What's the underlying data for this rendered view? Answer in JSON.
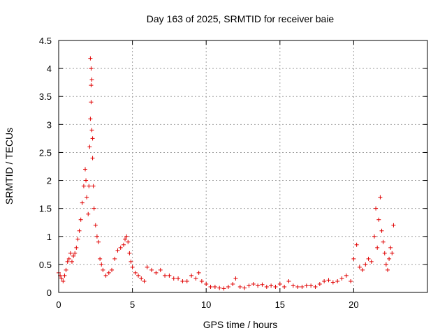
{
  "chart_data": {
    "type": "scatter",
    "title": "Day 163 of 2025, SRMTID for receiver baie",
    "xlabel": "GPS time / hours",
    "ylabel": "SRMTID / TECUs",
    "xlim": [
      0,
      25
    ],
    "ylim": [
      0,
      4.5
    ],
    "xticks": [
      0,
      5,
      10,
      15,
      20
    ],
    "xtick_labels": [
      "0",
      "5",
      "10",
      "15",
      "20"
    ],
    "yticks": [
      0,
      0.5,
      1,
      1.5,
      2,
      2.5,
      3,
      3.5,
      4,
      4.5
    ],
    "ytick_labels": [
      "0",
      "0.5",
      "1",
      "1.5",
      "2",
      "2.5",
      "3",
      "3.5",
      "4",
      "4.5"
    ],
    "grid": true,
    "marker": "+",
    "color": "#e00000",
    "series": [
      {
        "name": "SRMTID",
        "x": [
          0.0,
          0.1,
          0.2,
          0.3,
          0.4,
          0.5,
          0.6,
          0.7,
          0.8,
          0.9,
          1.0,
          1.1,
          1.2,
          1.3,
          1.4,
          1.5,
          1.6,
          1.7,
          1.8,
          1.85,
          1.9,
          2.0,
          2.05,
          2.1,
          2.15,
          2.15,
          2.2,
          2.2,
          2.2,
          2.25,
          2.25,
          2.3,
          2.3,
          2.35,
          2.4,
          2.5,
          2.6,
          2.7,
          2.8,
          2.9,
          3.0,
          3.2,
          3.4,
          3.6,
          3.8,
          4.0,
          4.2,
          4.4,
          4.5,
          4.6,
          4.7,
          4.8,
          4.9,
          5.0,
          5.2,
          5.4,
          5.6,
          5.8,
          6.0,
          6.3,
          6.6,
          6.9,
          7.2,
          7.5,
          7.8,
          8.1,
          8.4,
          8.7,
          9.0,
          9.3,
          9.5,
          9.7,
          10.0,
          10.3,
          10.6,
          10.9,
          11.2,
          11.5,
          11.8,
          12.0,
          12.3,
          12.6,
          12.9,
          13.2,
          13.5,
          13.8,
          14.1,
          14.4,
          14.7,
          15.0,
          15.3,
          15.6,
          15.9,
          16.2,
          16.5,
          16.8,
          17.1,
          17.4,
          17.7,
          18.0,
          18.3,
          18.6,
          18.9,
          19.2,
          19.5,
          19.8,
          20.0,
          20.2,
          20.4,
          20.6,
          20.8,
          21.0,
          21.2,
          21.4,
          21.5,
          21.6,
          21.7,
          21.8,
          21.9,
          22.0,
          22.1,
          22.2,
          22.3,
          22.4,
          22.5,
          22.6,
          22.7
        ],
        "y": [
          0.35,
          0.3,
          0.25,
          0.2,
          0.3,
          0.4,
          0.55,
          0.6,
          0.7,
          0.55,
          0.65,
          0.7,
          0.8,
          0.95,
          1.1,
          1.3,
          1.6,
          1.9,
          2.2,
          2.0,
          1.7,
          1.4,
          1.9,
          2.6,
          3.1,
          4.18,
          4.0,
          3.7,
          3.4,
          3.8,
          2.9,
          2.75,
          2.4,
          1.9,
          1.5,
          1.2,
          1.0,
          0.9,
          0.6,
          0.5,
          0.4,
          0.3,
          0.35,
          0.4,
          0.6,
          0.75,
          0.8,
          0.85,
          0.95,
          1.0,
          0.9,
          0.7,
          0.55,
          0.45,
          0.35,
          0.3,
          0.25,
          0.2,
          0.45,
          0.4,
          0.35,
          0.4,
          0.3,
          0.3,
          0.25,
          0.25,
          0.2,
          0.2,
          0.3,
          0.25,
          0.35,
          0.2,
          0.15,
          0.1,
          0.1,
          0.08,
          0.07,
          0.1,
          0.15,
          0.25,
          0.1,
          0.08,
          0.12,
          0.15,
          0.12,
          0.14,
          0.1,
          0.12,
          0.1,
          0.15,
          0.1,
          0.2,
          0.12,
          0.1,
          0.1,
          0.12,
          0.12,
          0.1,
          0.15,
          0.2,
          0.22,
          0.18,
          0.2,
          0.25,
          0.3,
          0.2,
          0.6,
          0.85,
          0.45,
          0.4,
          0.5,
          0.6,
          0.55,
          1.0,
          1.5,
          0.8,
          1.3,
          1.7,
          1.1,
          0.9,
          0.7,
          0.5,
          0.4,
          0.6,
          0.8,
          0.7,
          1.2
        ]
      }
    ]
  }
}
